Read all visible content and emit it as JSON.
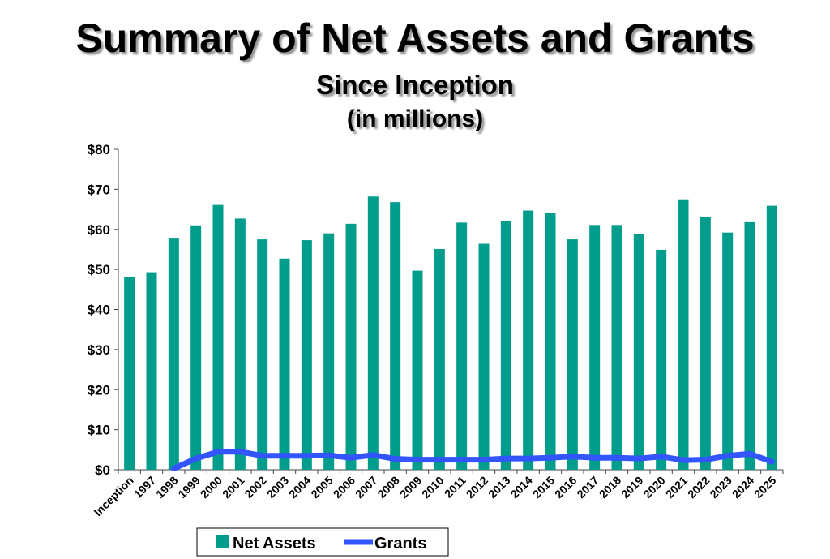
{
  "chart_data": {
    "type": "bar",
    "title": "Summary of Net Assets and Grants",
    "subtitle": "Since Inception",
    "units_note": "(in millions)",
    "xlabel": "",
    "ylabel": "",
    "ylim": [
      0,
      80
    ],
    "yticks": [
      0,
      10,
      20,
      30,
      40,
      50,
      60,
      70,
      80
    ],
    "ytick_labels": [
      "$0",
      "$10",
      "$20",
      "$30",
      "$40",
      "$50",
      "$60",
      "$70",
      "$80"
    ],
    "grid": false,
    "legend_position": "bottom",
    "categories": [
      "Inception",
      "1997",
      "1998",
      "1999",
      "2000",
      "2001",
      "2002",
      "2003",
      "2004",
      "2005",
      "2006",
      "2007",
      "2008",
      "2009",
      "2010",
      "2011",
      "2012",
      "2013",
      "2014",
      "2015",
      "2016",
      "2017",
      "2018",
      "2019",
      "2020",
      "2021",
      "2022",
      "2023",
      "2024",
      "2025"
    ],
    "series": [
      {
        "name": "Net Assets",
        "type": "bar",
        "color": "#009C8C",
        "values": [
          48.0,
          49.3,
          57.9,
          61.0,
          66.1,
          62.7,
          57.5,
          52.7,
          57.3,
          59.0,
          61.4,
          68.2,
          66.8,
          49.7,
          55.1,
          61.7,
          56.4,
          62.1,
          64.7,
          64.0,
          57.5,
          61.1,
          61.1,
          58.9,
          54.9,
          67.5,
          63.0,
          59.2,
          61.8,
          65.9
        ]
      },
      {
        "name": "Grants",
        "type": "line",
        "color": "#3355FF",
        "values": [
          null,
          null,
          0.3,
          2.8,
          4.5,
          4.5,
          3.5,
          3.5,
          3.5,
          3.6,
          3.0,
          3.7,
          2.7,
          2.5,
          2.5,
          2.5,
          2.5,
          2.8,
          2.8,
          3.0,
          3.3,
          3.0,
          3.0,
          2.8,
          3.3,
          2.4,
          2.5,
          3.5,
          4.0,
          2.0
        ]
      }
    ]
  }
}
